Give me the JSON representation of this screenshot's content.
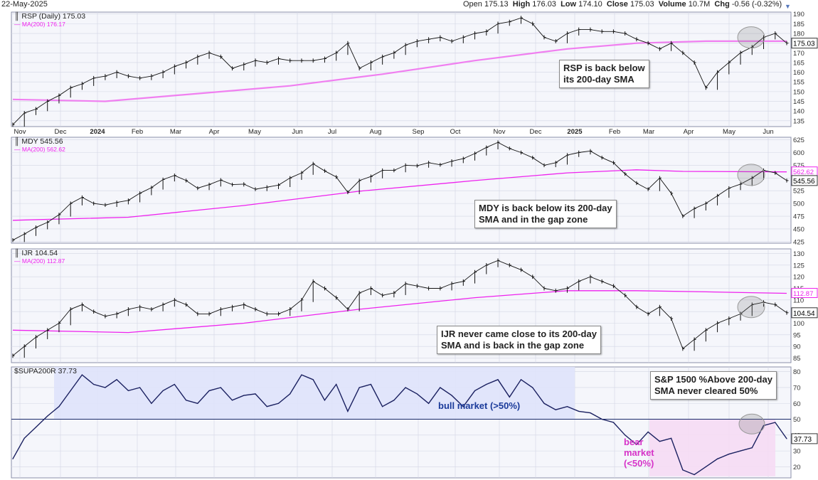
{
  "header": {
    "date": "22-May-2025",
    "open_label": "Open",
    "open": "175.13",
    "high_label": "High",
    "high": "176.03",
    "low_label": "Low",
    "low": "174.10",
    "close_label": "Close",
    "close": "175.03",
    "volume_label": "Volume",
    "volume": "10.7M",
    "chg_label": "Chg",
    "chg": "-0.56 (-0.32%)"
  },
  "colors": {
    "price": "#111111",
    "ma": "#ee22ee",
    "ma_rsp": "#f07ff0",
    "bull_zone": "#dfe3fb",
    "bear_zone": "#f6dcf4",
    "bull_text": "#1a3a9a",
    "bear_text": "#d633c8",
    "panel_bg": "#f5f6fb",
    "grid": "#d3d6e4"
  },
  "annotations": {
    "rsp": "RSP is back below\nits 200-day SMA",
    "mdy": "MDY is back below its 200-day\nSMA and in the gap zone",
    "ijr": "IJR never came close to its 200-day\nSMA and is back in the gap zone",
    "supa": "S&P 1500 %Above 200-day\nSMA never cleared 50%",
    "bull": "bull market (>50%)",
    "bear": "bear\nmarket\n(<50%)"
  },
  "chart_data": [
    {
      "type": "line",
      "symbol_label": "RSP (Daily) 175.03",
      "ma_label": "MA(200) 176.17",
      "last_price_label": "175.03",
      "ma_value_label": "",
      "y_ticks": [
        135,
        140,
        145,
        150,
        155,
        160,
        165,
        170,
        175,
        180,
        185,
        190
      ],
      "ylim": [
        132,
        191
      ],
      "x_labels": [
        "Nov",
        "Dec",
        "2024",
        "Feb",
        "Mar",
        "Apr",
        "May",
        "Jun",
        "Jul",
        "Aug",
        "Sep",
        "Oct",
        "Nov",
        "Dec",
        "2025",
        "Feb",
        "Mar",
        "Apr",
        "May",
        "Jun"
      ],
      "price": [
        [
          0,
          133
        ],
        [
          1,
          139
        ],
        [
          2,
          141
        ],
        [
          3,
          145
        ],
        [
          4,
          148
        ],
        [
          5,
          152
        ],
        [
          6,
          154
        ],
        [
          7,
          157
        ],
        [
          8,
          158
        ],
        [
          9,
          160
        ],
        [
          10,
          158
        ],
        [
          11,
          157
        ],
        [
          12,
          158
        ],
        [
          13,
          160
        ],
        [
          14,
          163
        ],
        [
          15,
          165
        ],
        [
          16,
          168
        ],
        [
          17,
          170
        ],
        [
          18,
          168
        ],
        [
          19,
          162
        ],
        [
          20,
          164
        ],
        [
          21,
          166
        ],
        [
          22,
          165
        ],
        [
          23,
          167
        ],
        [
          24,
          166
        ],
        [
          25,
          166
        ],
        [
          26,
          166
        ],
        [
          27,
          167
        ],
        [
          28,
          170
        ],
        [
          29,
          175
        ],
        [
          30,
          162
        ],
        [
          31,
          165
        ],
        [
          32,
          168
        ],
        [
          33,
          170
        ],
        [
          34,
          174
        ],
        [
          35,
          176
        ],
        [
          36,
          177
        ],
        [
          37,
          178
        ],
        [
          38,
          176
        ],
        [
          39,
          178
        ],
        [
          40,
          180
        ],
        [
          41,
          181
        ],
        [
          42,
          185
        ],
        [
          43,
          186
        ],
        [
          44,
          188
        ],
        [
          45,
          185
        ],
        [
          46,
          178
        ],
        [
          47,
          176
        ],
        [
          48,
          180
        ],
        [
          49,
          182
        ],
        [
          50,
          182
        ],
        [
          51,
          181
        ],
        [
          52,
          181
        ],
        [
          53,
          180
        ],
        [
          54,
          177
        ],
        [
          55,
          175
        ],
        [
          56,
          172
        ],
        [
          57,
          175
        ],
        [
          58,
          170
        ],
        [
          59,
          165
        ],
        [
          60,
          152
        ],
        [
          61,
          160
        ],
        [
          62,
          165
        ],
        [
          63,
          170
        ],
        [
          64,
          173
        ],
        [
          65,
          178
        ],
        [
          66,
          180
        ],
        [
          67,
          175
        ]
      ],
      "ma": [
        [
          0,
          146
        ],
        [
          8,
          145
        ],
        [
          16,
          149
        ],
        [
          24,
          153
        ],
        [
          32,
          159
        ],
        [
          40,
          166
        ],
        [
          48,
          172
        ],
        [
          54,
          175
        ],
        [
          60,
          176
        ],
        [
          67,
          176
        ]
      ]
    },
    {
      "type": "line",
      "symbol_label": "MDY 545.56",
      "ma_label": "MA(200) 562.62",
      "last_price_label": "545.56",
      "ma_value_label": "562.62",
      "y_ticks": [
        425,
        450,
        475,
        500,
        525,
        550,
        575,
        600,
        625
      ],
      "ylim": [
        422,
        630
      ],
      "x_labels": [],
      "price": [
        [
          0,
          428
        ],
        [
          1,
          440
        ],
        [
          2,
          453
        ],
        [
          3,
          463
        ],
        [
          4,
          478
        ],
        [
          5,
          500
        ],
        [
          6,
          512
        ],
        [
          7,
          500
        ],
        [
          8,
          497
        ],
        [
          9,
          502
        ],
        [
          10,
          506
        ],
        [
          11,
          520
        ],
        [
          12,
          531
        ],
        [
          13,
          547
        ],
        [
          14,
          555
        ],
        [
          15,
          545
        ],
        [
          16,
          530
        ],
        [
          17,
          537
        ],
        [
          18,
          546
        ],
        [
          19,
          537
        ],
        [
          20,
          538
        ],
        [
          21,
          528
        ],
        [
          22,
          532
        ],
        [
          23,
          536
        ],
        [
          24,
          550
        ],
        [
          25,
          560
        ],
        [
          26,
          578
        ],
        [
          27,
          564
        ],
        [
          28,
          552
        ],
        [
          29,
          522
        ],
        [
          30,
          545
        ],
        [
          31,
          553
        ],
        [
          32,
          565
        ],
        [
          33,
          565
        ],
        [
          34,
          575
        ],
        [
          35,
          574
        ],
        [
          36,
          580
        ],
        [
          37,
          576
        ],
        [
          38,
          583
        ],
        [
          39,
          588
        ],
        [
          40,
          598
        ],
        [
          41,
          610
        ],
        [
          42,
          620
        ],
        [
          43,
          608
        ],
        [
          44,
          600
        ],
        [
          45,
          590
        ],
        [
          46,
          575
        ],
        [
          47,
          580
        ],
        [
          48,
          595
        ],
        [
          49,
          600
        ],
        [
          50,
          603
        ],
        [
          51,
          590
        ],
        [
          52,
          580
        ],
        [
          53,
          558
        ],
        [
          54,
          540
        ],
        [
          55,
          528
        ],
        [
          56,
          550
        ],
        [
          57,
          520
        ],
        [
          58,
          475
        ],
        [
          59,
          490
        ],
        [
          60,
          500
        ],
        [
          61,
          515
        ],
        [
          62,
          530
        ],
        [
          63,
          538
        ],
        [
          64,
          550
        ],
        [
          65,
          565
        ],
        [
          66,
          560
        ],
        [
          67,
          545
        ]
      ],
      "ma": [
        [
          0,
          467
        ],
        [
          10,
          473
        ],
        [
          20,
          496
        ],
        [
          30,
          524
        ],
        [
          40,
          545
        ],
        [
          48,
          560
        ],
        [
          54,
          566
        ],
        [
          58,
          563
        ],
        [
          67,
          562
        ]
      ]
    },
    {
      "type": "line",
      "symbol_label": "IJR 104.54",
      "ma_label": "MA(200) 112.87",
      "last_price_label": "104.54",
      "ma_value_label": "112.87",
      "y_ticks": [
        80,
        85,
        90,
        95,
        100,
        105,
        110,
        115,
        120,
        125,
        130
      ],
      "ylim": [
        83,
        132
      ],
      "x_labels": [],
      "price": [
        [
          0,
          86
        ],
        [
          1,
          90
        ],
        [
          2,
          94
        ],
        [
          3,
          97
        ],
        [
          4,
          100
        ],
        [
          5,
          106
        ],
        [
          6,
          108
        ],
        [
          7,
          105
        ],
        [
          8,
          103
        ],
        [
          9,
          104
        ],
        [
          10,
          106
        ],
        [
          11,
          107
        ],
        [
          12,
          106
        ],
        [
          13,
          108
        ],
        [
          14,
          110
        ],
        [
          15,
          108
        ],
        [
          16,
          104
        ],
        [
          17,
          104
        ],
        [
          18,
          106
        ],
        [
          19,
          107
        ],
        [
          20,
          108
        ],
        [
          21,
          106
        ],
        [
          22,
          104
        ],
        [
          23,
          104
        ],
        [
          24,
          106
        ],
        [
          25,
          110
        ],
        [
          26,
          118
        ],
        [
          27,
          115
        ],
        [
          28,
          111
        ],
        [
          29,
          106
        ],
        [
          30,
          113
        ],
        [
          31,
          115
        ],
        [
          32,
          112
        ],
        [
          33,
          113
        ],
        [
          34,
          117
        ],
        [
          35,
          116
        ],
        [
          36,
          115
        ],
        [
          37,
          115
        ],
        [
          38,
          117
        ],
        [
          39,
          118
        ],
        [
          40,
          122
        ],
        [
          41,
          125
        ],
        [
          42,
          127
        ],
        [
          43,
          125
        ],
        [
          44,
          123
        ],
        [
          45,
          120
        ],
        [
          46,
          115
        ],
        [
          47,
          114
        ],
        [
          48,
          115
        ],
        [
          49,
          118
        ],
        [
          50,
          120
        ],
        [
          51,
          118
        ],
        [
          52,
          116
        ],
        [
          53,
          112
        ],
        [
          54,
          107
        ],
        [
          55,
          104
        ],
        [
          56,
          107
        ],
        [
          57,
          102
        ],
        [
          58,
          89
        ],
        [
          59,
          93
        ],
        [
          60,
          97
        ],
        [
          61,
          100
        ],
        [
          62,
          102
        ],
        [
          63,
          104
        ],
        [
          64,
          108
        ],
        [
          65,
          109
        ],
        [
          66,
          108
        ],
        [
          67,
          104.5
        ]
      ],
      "ma": [
        [
          0,
          97
        ],
        [
          10,
          96
        ],
        [
          20,
          100
        ],
        [
          30,
          106
        ],
        [
          40,
          111
        ],
        [
          48,
          114
        ],
        [
          54,
          114
        ],
        [
          60,
          113.5
        ],
        [
          67,
          112.87
        ]
      ]
    },
    {
      "type": "line",
      "symbol_label": "$SUPA200R 37.73",
      "last_price_label": "37.73",
      "y_ticks": [
        20,
        30,
        40,
        50,
        60,
        70,
        80
      ],
      "ylim": [
        13,
        83
      ],
      "threshold": 50,
      "x_labels": [],
      "values": [
        [
          0,
          25
        ],
        [
          1,
          38
        ],
        [
          2,
          45
        ],
        [
          3,
          52
        ],
        [
          4,
          58
        ],
        [
          5,
          68
        ],
        [
          6,
          78
        ],
        [
          7,
          72
        ],
        [
          8,
          70
        ],
        [
          9,
          75
        ],
        [
          10,
          68
        ],
        [
          11,
          70
        ],
        [
          12,
          60
        ],
        [
          13,
          68
        ],
        [
          14,
          72
        ],
        [
          15,
          62
        ],
        [
          16,
          60
        ],
        [
          17,
          68
        ],
        [
          18,
          70
        ],
        [
          19,
          62
        ],
        [
          20,
          65
        ],
        [
          21,
          66
        ],
        [
          22,
          58
        ],
        [
          23,
          60
        ],
        [
          24,
          66
        ],
        [
          25,
          78
        ],
        [
          26,
          75
        ],
        [
          27,
          62
        ],
        [
          28,
          72
        ],
        [
          29,
          55
        ],
        [
          30,
          70
        ],
        [
          31,
          72
        ],
        [
          32,
          58
        ],
        [
          33,
          62
        ],
        [
          34,
          70
        ],
        [
          35,
          66
        ],
        [
          36,
          60
        ],
        [
          37,
          70
        ],
        [
          38,
          65
        ],
        [
          39,
          58
        ],
        [
          40,
          68
        ],
        [
          41,
          72
        ],
        [
          42,
          75
        ],
        [
          43,
          64
        ],
        [
          44,
          75
        ],
        [
          45,
          70
        ],
        [
          46,
          60
        ],
        [
          47,
          56
        ],
        [
          48,
          58
        ],
        [
          49,
          55
        ],
        [
          50,
          54
        ],
        [
          51,
          50
        ],
        [
          52,
          48
        ],
        [
          53,
          40
        ],
        [
          54,
          34
        ],
        [
          55,
          42
        ],
        [
          56,
          36
        ],
        [
          57,
          38
        ],
        [
          58,
          18
        ],
        [
          59,
          15
        ],
        [
          60,
          20
        ],
        [
          61,
          25
        ],
        [
          62,
          28
        ],
        [
          63,
          30
        ],
        [
          64,
          32
        ],
        [
          65,
          46
        ],
        [
          66,
          48
        ],
        [
          67,
          37.73
        ]
      ]
    }
  ]
}
